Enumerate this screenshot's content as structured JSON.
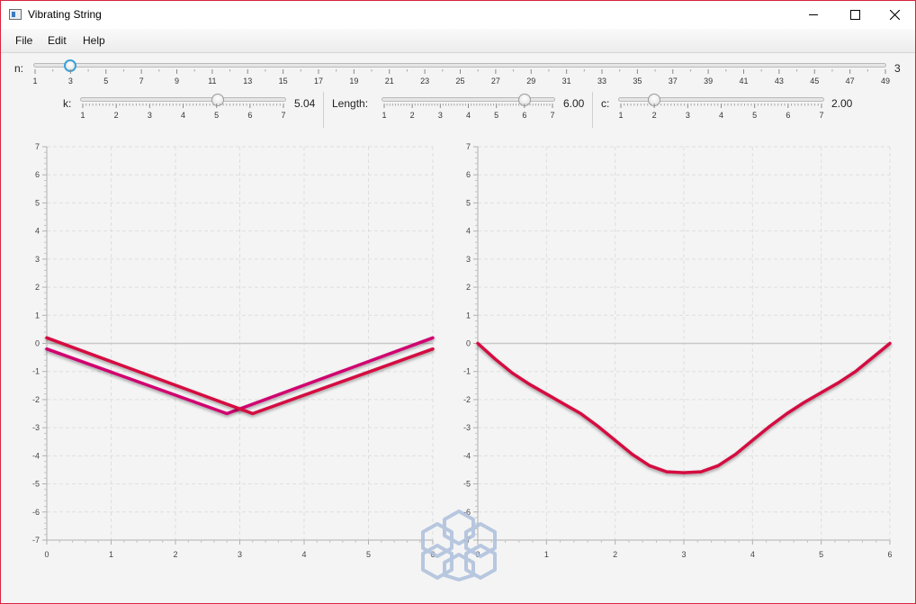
{
  "window": {
    "title": "Vibrating String"
  },
  "menu": {
    "items": [
      "File",
      "Edit",
      "Help"
    ]
  },
  "sliders": {
    "n": {
      "label": "n:",
      "value": 3,
      "value_text": "3",
      "min": 1,
      "max": 49,
      "ticks": [
        "1",
        "3",
        "5",
        "7",
        "9",
        "11",
        "13",
        "15",
        "17",
        "19",
        "21",
        "23",
        "25",
        "27",
        "29",
        "31",
        "33",
        "35",
        "37",
        "39",
        "41",
        "43",
        "45",
        "47",
        "49"
      ]
    },
    "k": {
      "label": "k:",
      "value": 5.04,
      "value_text": "5.04",
      "min": 1,
      "max": 7,
      "ticks": [
        "1",
        "2",
        "3",
        "4",
        "5",
        "6",
        "7"
      ]
    },
    "length": {
      "label": "Length:",
      "value": 6.0,
      "value_text": "6.00",
      "min": 1,
      "max": 7,
      "ticks": [
        "1",
        "2",
        "3",
        "4",
        "5",
        "6",
        "7"
      ]
    },
    "c": {
      "label": "c:",
      "value": 2.0,
      "value_text": "2.00",
      "min": 1,
      "max": 7,
      "ticks": [
        "1",
        "2",
        "3",
        "4",
        "5",
        "6",
        "7"
      ]
    }
  },
  "chart_data": [
    {
      "type": "line",
      "xlim": [
        0,
        6
      ],
      "ylim": [
        -7,
        7
      ],
      "x_ticks": [
        "0",
        "1",
        "2",
        "3",
        "4",
        "5",
        "6"
      ],
      "y_ticks": [
        "-7",
        "-6",
        "-5",
        "-4",
        "-3",
        "-2",
        "-1",
        "0",
        "1",
        "2",
        "3",
        "4",
        "5",
        "6",
        "7"
      ],
      "grid": true,
      "series": [
        {
          "color": "#c8c8c8",
          "x": [
            0,
            6
          ],
          "y": [
            0,
            0
          ]
        },
        {
          "color": "#d0006f",
          "x": [
            0,
            2.8,
            6
          ],
          "y": [
            -0.2,
            -2.5,
            0.2
          ]
        },
        {
          "color": "#d4073f",
          "x": [
            0,
            3.2,
            6
          ],
          "y": [
            0.2,
            -2.5,
            -0.2
          ]
        }
      ]
    },
    {
      "type": "line",
      "xlim": [
        0,
        6
      ],
      "ylim": [
        -7,
        7
      ],
      "x_ticks": [
        "0",
        "1",
        "2",
        "3",
        "4",
        "5",
        "6"
      ],
      "y_ticks": [
        "-7",
        "-6",
        "-5",
        "-4",
        "-3",
        "-2",
        "-1",
        "0",
        "1",
        "2",
        "3",
        "4",
        "5",
        "6",
        "7"
      ],
      "grid": true,
      "series": [
        {
          "color": "#c8c8c8",
          "x": [
            0,
            6
          ],
          "y": [
            0,
            0
          ]
        },
        {
          "color": "#d4073f",
          "x": [
            0,
            0.25,
            0.5,
            0.75,
            1.0,
            1.25,
            1.5,
            1.75,
            2.0,
            2.25,
            2.5,
            2.75,
            3.0,
            3.25,
            3.5,
            3.75,
            4.0,
            4.25,
            4.5,
            4.75,
            5.0,
            5.25,
            5.5,
            5.75,
            6.0
          ],
          "y": [
            0,
            -0.55,
            -1.05,
            -1.45,
            -1.8,
            -2.15,
            -2.5,
            -2.95,
            -3.45,
            -3.95,
            -4.35,
            -4.57,
            -4.6,
            -4.57,
            -4.35,
            -3.95,
            -3.45,
            -2.95,
            -2.5,
            -2.1,
            -1.75,
            -1.4,
            -1.0,
            -0.5,
            0
          ]
        }
      ]
    }
  ]
}
